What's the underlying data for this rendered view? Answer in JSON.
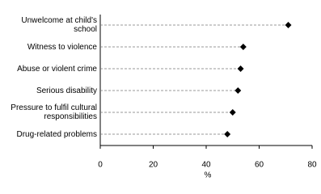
{
  "chart_data": {
    "type": "dot",
    "categories": [
      "Unwelcome at child's school",
      "Witness to violence",
      "Abuse or violent crime",
      "Serious disability",
      "Pressure to fulfil cultural responsibilities",
      "Drug-related problems"
    ],
    "values": [
      71,
      54,
      53,
      52,
      50,
      48
    ],
    "color": "#000000",
    "x_label": "%",
    "xlim": [
      0,
      80
    ],
    "xticks": [
      0,
      20,
      40,
      60,
      80
    ]
  }
}
